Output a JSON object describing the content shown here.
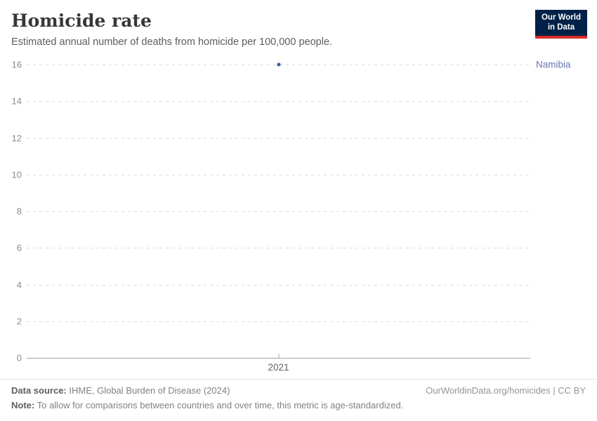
{
  "header": {
    "title": "Homicide rate",
    "subtitle": "Estimated annual number of deaths from homicide per 100,000 people.",
    "logo": {
      "line1": "Our World",
      "line2": "in Data"
    }
  },
  "chart_data": {
    "type": "scatter",
    "title": "Homicide rate",
    "subtitle": "Estimated annual number of deaths from homicide per 100,000 people.",
    "series": [
      {
        "name": "Namibia",
        "color": "#3d57a0",
        "label_color": "#6577b3",
        "points": [
          {
            "x": 2021,
            "y": 16
          }
        ]
      }
    ],
    "xticks": [
      2021
    ],
    "yticks": [
      16,
      14,
      12,
      10,
      8,
      6,
      4,
      2,
      0
    ],
    "ylim": [
      0,
      16
    ],
    "grid": "horizontal-dashed",
    "legend_position": "right-entity-label"
  },
  "colors": {
    "accent_blue": "#3d57a0",
    "entity_label": "#6577b3",
    "logo_bg": "#002147",
    "logo_red": "#dc2a2a",
    "gridline": "#dcdcdc",
    "axis": "#a3a3a3",
    "muted_text": "#8b8b8b"
  },
  "footer": {
    "datasource_label": "Data source:",
    "datasource_value": " IHME, Global Burden of Disease (2024)",
    "attribution": "OurWorldinData.org/homicides | CC BY",
    "note_label": "Note:",
    "note_value": " To allow for comparisons between countries and over time, this metric is age-standardized."
  }
}
